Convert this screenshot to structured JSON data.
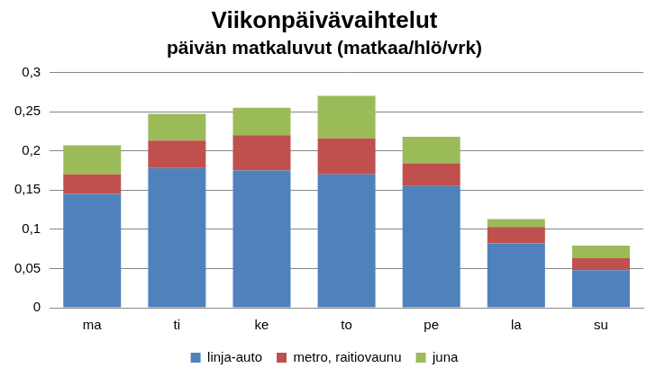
{
  "chart_data": {
    "type": "bar",
    "title": "Viikonpäivävaihtelut",
    "subtitle": "päivän matkaluvut (matkaa/hlö/vrk)",
    "categories": [
      "ma",
      "ti",
      "ke",
      "to",
      "pe",
      "la",
      "su"
    ],
    "series": [
      {
        "name": "linja-auto",
        "color": "#4f81bd",
        "values": [
          0.145,
          0.178,
          0.175,
          0.17,
          0.155,
          0.082,
          0.048
        ]
      },
      {
        "name": "metro, raitiovaunu",
        "color": "#c0504d",
        "values": [
          0.025,
          0.035,
          0.045,
          0.046,
          0.029,
          0.021,
          0.015
        ]
      },
      {
        "name": "juna",
        "color": "#9bbb59",
        "values": [
          0.037,
          0.034,
          0.035,
          0.054,
          0.034,
          0.01,
          0.016
        ]
      }
    ],
    "ylim": [
      0,
      0.3
    ],
    "yticks": [
      0,
      {
        "value": 0.05,
        "label": "0,05"
      },
      {
        "value": 0.1,
        "label": "0,1"
      },
      {
        "value": 0.15,
        "label": "0,15"
      },
      {
        "value": 0.2,
        "label": "0,2"
      },
      {
        "value": 0.25,
        "label": "0,25"
      },
      {
        "value": 0.3,
        "label": "0,3"
      }
    ],
    "stacked": true,
    "grid": true,
    "legend": "bottom"
  }
}
